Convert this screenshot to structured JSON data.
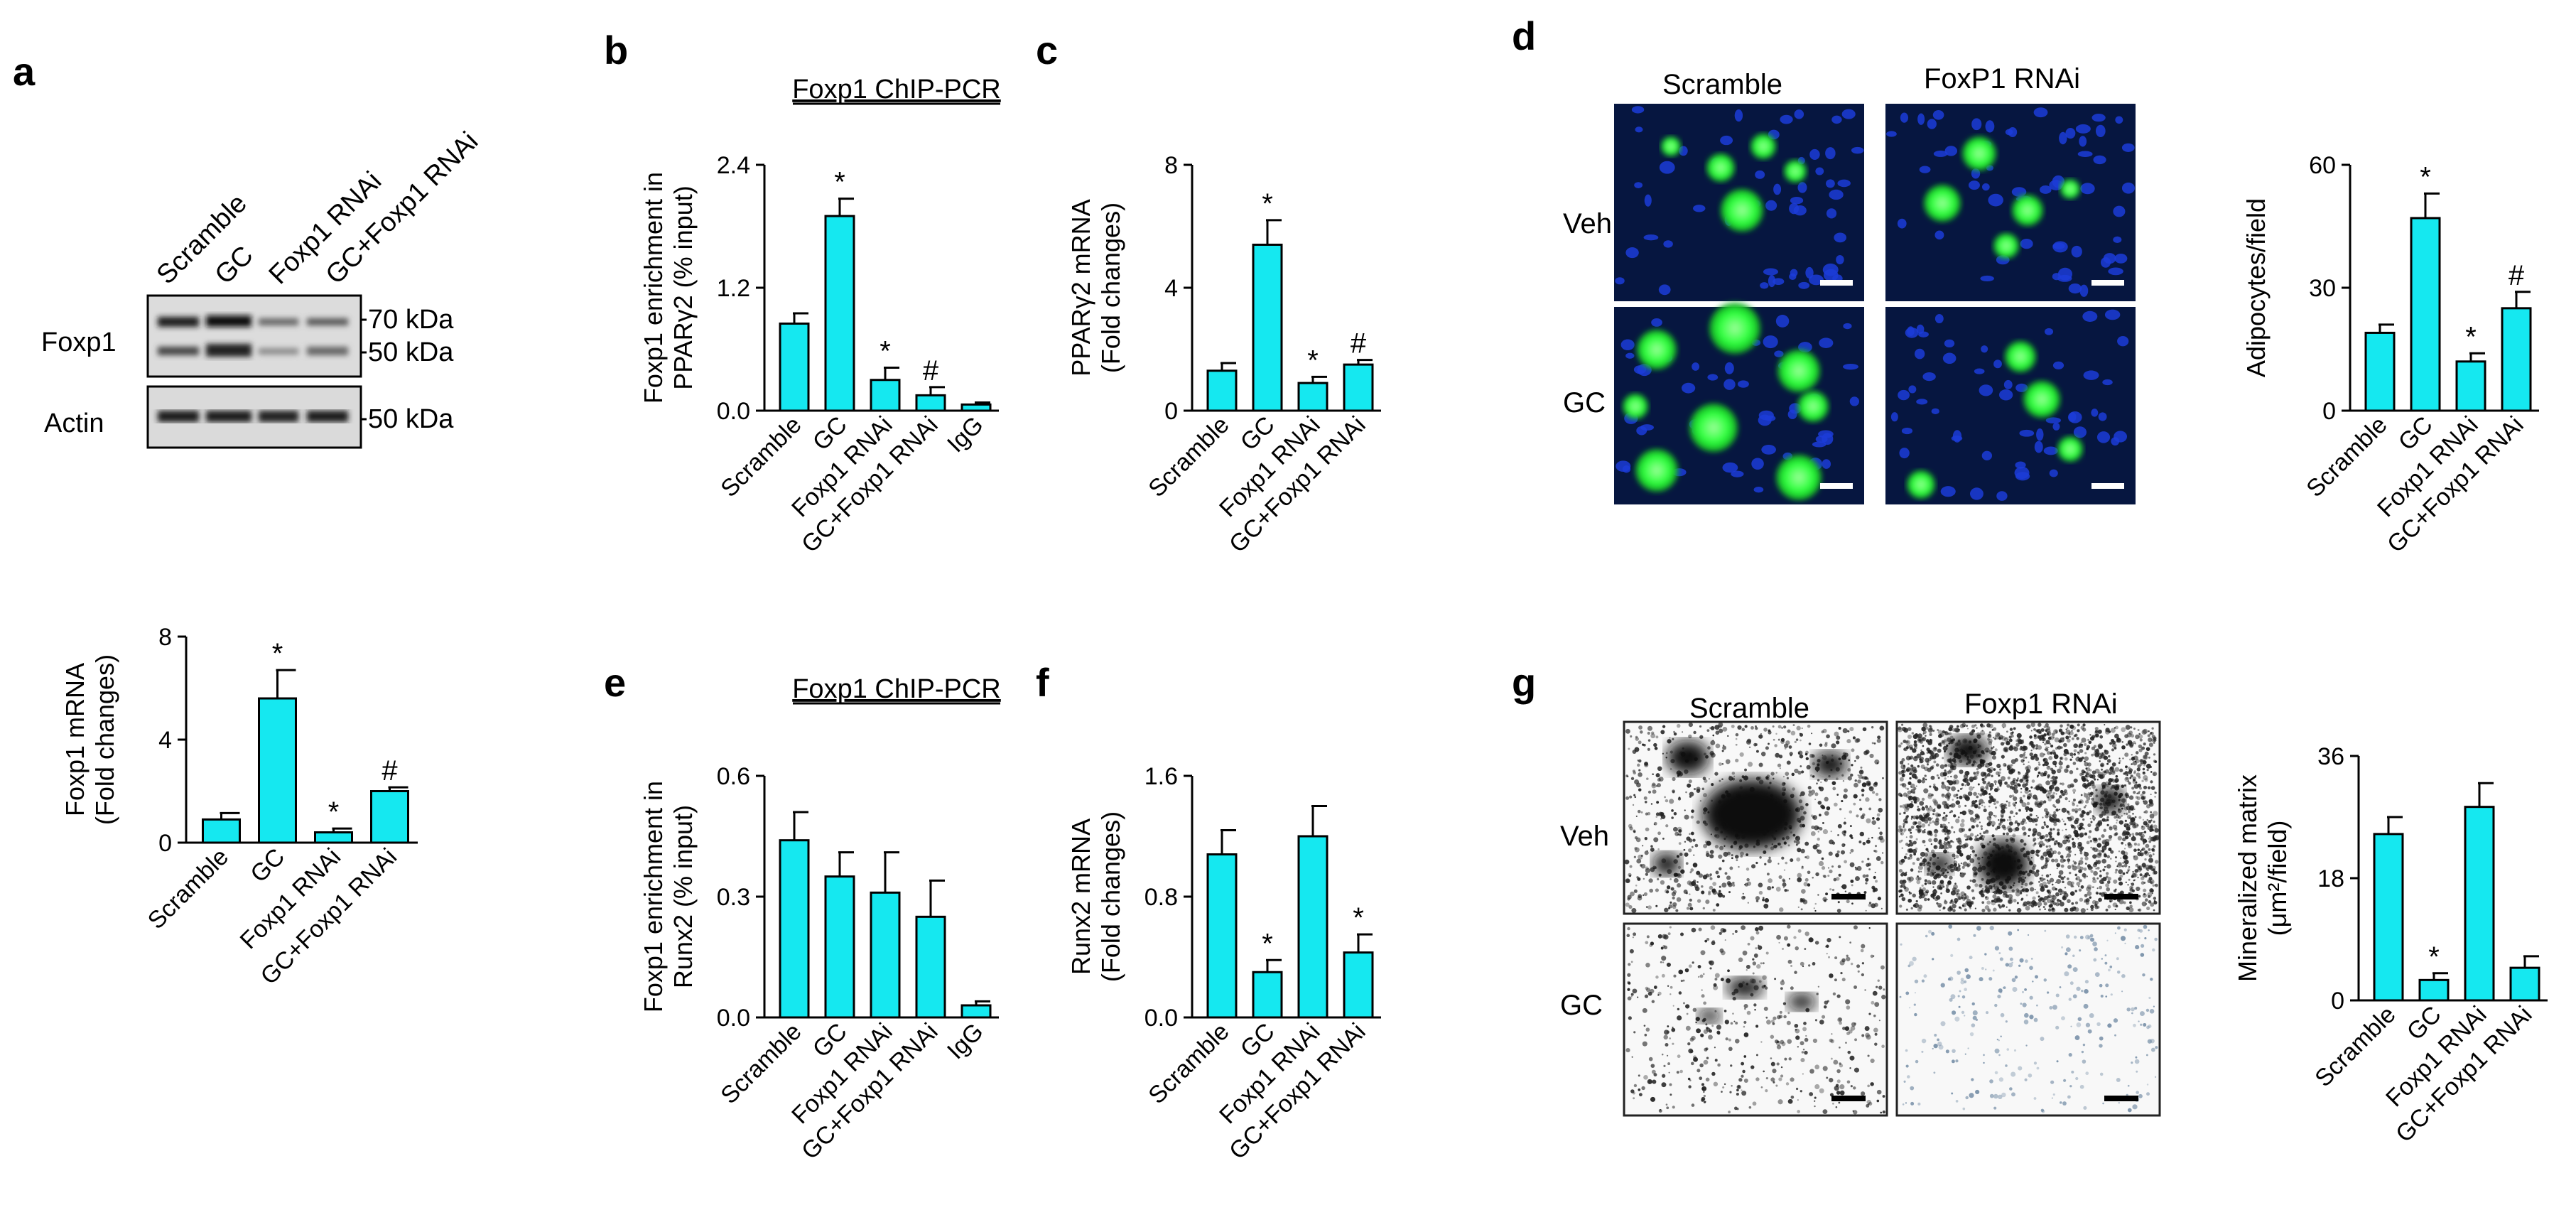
{
  "panels": {
    "a": "a",
    "b": "b",
    "c": "c",
    "d": "d",
    "e": "e",
    "f": "f",
    "g": "g"
  },
  "blot": {
    "lanes": [
      "Scramble",
      "GC",
      "Foxp1 RNAi",
      "GC+Foxp1 RNAi"
    ],
    "rows": [
      "Foxp1",
      "Actin"
    ],
    "markers": [
      "70 kDa",
      "50 kDa",
      "50 kDa"
    ]
  },
  "micro_d": {
    "cols": [
      "Scramble",
      "FoxP1 RNAi"
    ],
    "rows": [
      "Veh",
      "GC"
    ]
  },
  "micro_g": {
    "cols": [
      "Scramble",
      "Foxp1 RNAi"
    ],
    "rows": [
      "Veh",
      "GC"
    ]
  },
  "colors": {
    "bar": "#15e8f0",
    "fluor_bg": "#061640",
    "nuclei": "#1c3cd8",
    "lipid": "#2cff3c"
  },
  "chart_data": [
    {
      "id": "a",
      "type": "bar",
      "title": "",
      "categories": [
        "Scramble",
        "GC",
        "Foxp1 RNAi",
        "GC+Foxp1 RNAi"
      ],
      "values": [
        0.9,
        5.6,
        0.4,
        2.0
      ],
      "errors": [
        0.25,
        1.1,
        0.15,
        0.15
      ],
      "marks": [
        "",
        "*",
        "*",
        "#"
      ],
      "ylabel": [
        "Foxp1 mRNA",
        "(Fold changes)"
      ],
      "ylim": [
        0,
        8
      ],
      "yticks": [
        "0",
        "4",
        "8"
      ]
    },
    {
      "id": "b",
      "type": "bar",
      "title": "Foxp1 ChIP-PCR",
      "categories": [
        "Scramble",
        "GC",
        "Foxp1 RNAi",
        "GC+Foxp1 RNAi",
        "IgG"
      ],
      "values": [
        0.85,
        1.9,
        0.3,
        0.15,
        0.06
      ],
      "errors": [
        0.1,
        0.17,
        0.12,
        0.08,
        0.02
      ],
      "marks": [
        "",
        "*",
        "*",
        "#",
        ""
      ],
      "ylabel": [
        "Foxp1 enrichment in",
        "PPARγ2 (% input)"
      ],
      "ylim": [
        0,
        2.4
      ],
      "yticks": [
        "0.0",
        "1.2",
        "2.4"
      ]
    },
    {
      "id": "c",
      "type": "bar",
      "title": "",
      "categories": [
        "Scramble",
        "GC",
        "Foxp1 RNAi",
        "GC+Foxp1 RNAi"
      ],
      "values": [
        1.3,
        5.4,
        0.9,
        1.5
      ],
      "errors": [
        0.25,
        0.8,
        0.2,
        0.15
      ],
      "marks": [
        "",
        "*",
        "*",
        "#"
      ],
      "ylabel": [
        "PPARγ2 mRNA",
        "(Fold changes)"
      ],
      "ylim": [
        0,
        8
      ],
      "yticks": [
        "0",
        "4",
        "8"
      ]
    },
    {
      "id": "d",
      "type": "bar",
      "title": "",
      "categories": [
        "Scramble",
        "GC",
        "Foxp1 RNAi",
        "GC+Foxp1 RNAi"
      ],
      "values": [
        19,
        47,
        12,
        25
      ],
      "errors": [
        2,
        6,
        2,
        4
      ],
      "marks": [
        "",
        "*",
        "*",
        "#"
      ],
      "ylabel": [
        "Adipocytes/field"
      ],
      "ylim": [
        0,
        60
      ],
      "yticks": [
        "0",
        "30",
        "60"
      ]
    },
    {
      "id": "e",
      "type": "bar",
      "title": "Foxp1 ChIP-PCR",
      "categories": [
        "Scramble",
        "GC",
        "Foxp1 RNAi",
        "GC+Foxp1 RNAi",
        "IgG"
      ],
      "values": [
        0.44,
        0.35,
        0.31,
        0.25,
        0.03
      ],
      "errors": [
        0.07,
        0.06,
        0.1,
        0.09,
        0.01
      ],
      "marks": [
        "",
        "",
        "",
        "",
        ""
      ],
      "ylabel": [
        "Foxp1 enrichment in",
        "Runx2 (% input)"
      ],
      "ylim": [
        0,
        0.6
      ],
      "yticks": [
        "0.0",
        "0.3",
        "0.6"
      ]
    },
    {
      "id": "f",
      "type": "bar",
      "title": "",
      "categories": [
        "Scramble",
        "GC",
        "Foxp1 RNAi",
        "GC+Foxp1 RNAi"
      ],
      "values": [
        1.08,
        0.3,
        1.2,
        0.43
      ],
      "errors": [
        0.16,
        0.08,
        0.2,
        0.12
      ],
      "marks": [
        "",
        "*",
        "",
        "*"
      ],
      "ylabel": [
        "Runx2 mRNA",
        "(Fold changes)"
      ],
      "ylim": [
        0,
        1.6
      ],
      "yticks": [
        "0.0",
        "0.8",
        "1.6"
      ]
    },
    {
      "id": "g",
      "type": "bar",
      "title": "",
      "categories": [
        "Scramble",
        "GC",
        "Foxp1 RNAi",
        "GC+Foxp1 RNAi"
      ],
      "values": [
        24.5,
        3,
        28.5,
        4.8
      ],
      "errors": [
        2.5,
        1,
        3.5,
        1.7
      ],
      "marks": [
        "",
        "*",
        "",
        ""
      ],
      "ylabel": [
        "Mineralized matrix",
        "(μm²/field)"
      ],
      "ylim": [
        0,
        36
      ],
      "yticks": [
        "0",
        "18",
        "36"
      ]
    }
  ]
}
